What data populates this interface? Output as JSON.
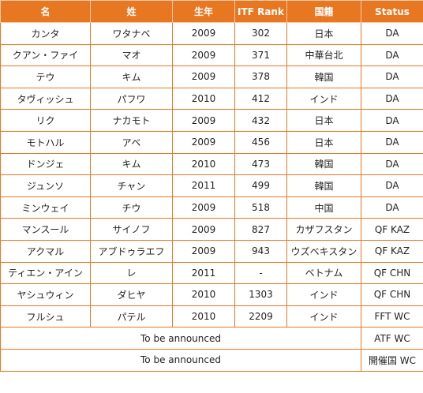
{
  "table": {
    "header": [
      "名",
      "姓",
      "生年",
      "ITF Rank",
      "国籍",
      "Status"
    ],
    "rows": [
      [
        "カンタ",
        "ワタナベ",
        "2009",
        "302",
        "日本",
        "DA"
      ],
      [
        "クアン・ファイ",
        "マオ",
        "2009",
        "371",
        "中華台北",
        "DA"
      ],
      [
        "テウ",
        "キム",
        "2009",
        "378",
        "韓国",
        "DA"
      ],
      [
        "タヴィッシュ",
        "パフワ",
        "2010",
        "412",
        "インド",
        "DA"
      ],
      [
        "リク",
        "ナカモト",
        "2009",
        "432",
        "日本",
        "DA"
      ],
      [
        "モトハル",
        "アベ",
        "2009",
        "456",
        "日本",
        "DA"
      ],
      [
        "ドンジェ",
        "キム",
        "2010",
        "473",
        "韓国",
        "DA"
      ],
      [
        "ジュンソ",
        "チャン",
        "2011",
        "499",
        "韓国",
        "DA"
      ],
      [
        "ミンウェイ",
        "チウ",
        "2009",
        "518",
        "中国",
        "DA"
      ],
      [
        "マンスール",
        "サイノフ",
        "2009",
        "827",
        "カザフスタン",
        "QF KAZ"
      ],
      [
        "アクマル",
        "アブドゥラエフ",
        "2009",
        "943",
        "ウズベキスタン",
        "QF KAZ"
      ],
      [
        "ティエン・アイン",
        "レ",
        "2011",
        "-",
        "ベトナム",
        "QF CHN"
      ],
      [
        "ヤシュウィン",
        "ダヒヤ",
        "2010",
        "1303",
        "インド",
        "QF CHN"
      ],
      [
        "フルシュ",
        "パテル",
        "2010",
        "2209",
        "インド",
        "FFT WC"
      ],
      [
        "To be announced",
        "ATF WC"
      ],
      [
        "To be announced",
        "開催国 WC"
      ]
    ]
  }
}
